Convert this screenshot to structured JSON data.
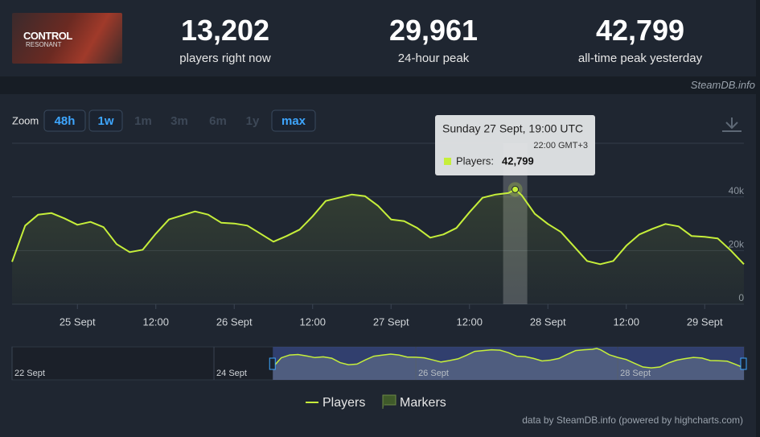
{
  "header": {
    "game_art": {
      "title": "CONTROL",
      "subtitle": "RESONANT"
    },
    "stats": [
      {
        "value": "13,202",
        "label": "players right now"
      },
      {
        "value": "29,961",
        "label": "24-hour peak"
      },
      {
        "value": "42,799",
        "label": "all-time peak yesterday"
      }
    ],
    "site": "SteamDB.info"
  },
  "zoom": {
    "label": "Zoom",
    "buttons": [
      "48h",
      "1w",
      "1m",
      "3m",
      "6m",
      "1y",
      "max"
    ]
  },
  "chart_data": {
    "type": "line",
    "x": [
      "24 Sept 14:00",
      "24 Sept 16:00",
      "24 Sept 18:00",
      "24 Sept 20:00",
      "24 Sept 22:00",
      "25 Sept 00:00",
      "25 Sept 02:00",
      "25 Sept 04:00",
      "25 Sept 06:00",
      "25 Sept 08:00",
      "25 Sept 10:00",
      "25 Sept 12:00",
      "25 Sept 14:00",
      "25 Sept 16:00",
      "25 Sept 18:00",
      "25 Sept 20:00",
      "25 Sept 22:00",
      "26 Sept 00:00",
      "26 Sept 02:00",
      "26 Sept 04:00",
      "26 Sept 06:00",
      "26 Sept 08:00",
      "26 Sept 10:00",
      "26 Sept 12:00",
      "26 Sept 14:00",
      "26 Sept 16:00",
      "26 Sept 18:00",
      "26 Sept 20:00",
      "26 Sept 22:00",
      "27 Sept 00:00",
      "27 Sept 02:00",
      "27 Sept 04:00",
      "27 Sept 06:00",
      "27 Sept 08:00",
      "27 Sept 10:00",
      "27 Sept 12:00",
      "27 Sept 14:00",
      "27 Sept 16:00",
      "27 Sept 18:00",
      "27 Sept 19:00",
      "27 Sept 20:00",
      "27 Sept 22:00",
      "28 Sept 00:00",
      "28 Sept 02:00",
      "28 Sept 04:00",
      "28 Sept 06:00",
      "28 Sept 08:00",
      "28 Sept 10:00",
      "28 Sept 12:00",
      "28 Sept 14:00",
      "28 Sept 16:00",
      "28 Sept 18:00",
      "28 Sept 20:00",
      "28 Sept 22:00",
      "29 Sept 00:00",
      "29 Sept 02:00",
      "29 Sept 04:00",
      "29 Sept 06:00"
    ],
    "series": [
      {
        "name": "Players",
        "color": "#c6ef3a",
        "values": [
          15800,
          29300,
          33400,
          34000,
          32000,
          29600,
          30700,
          28700,
          22400,
          19400,
          20300,
          26300,
          31600,
          33100,
          34600,
          33400,
          30400,
          30100,
          29300,
          26300,
          23300,
          25400,
          27800,
          32800,
          38500,
          39700,
          40900,
          40300,
          36700,
          31600,
          31000,
          28400,
          24800,
          26000,
          28400,
          34300,
          39700,
          40900,
          41500,
          42799,
          40600,
          33700,
          29900,
          26900,
          21500,
          16100,
          14900,
          16100,
          21800,
          26000,
          28100,
          29900,
          29000,
          25400,
          25100,
          24500,
          20000,
          14900
        ]
      }
    ],
    "xlim": [
      "24 Sept 14:00",
      "29 Sept 06:00"
    ],
    "xticks": [
      {
        "value": "25 Sept 00:00",
        "label": "25 Sept"
      },
      {
        "value": "25 Sept 12:00",
        "label": "12:00"
      },
      {
        "value": "26 Sept 00:00",
        "label": "26 Sept"
      },
      {
        "value": "26 Sept 12:00",
        "label": "12:00"
      },
      {
        "value": "27 Sept 00:00",
        "label": "27 Sept"
      },
      {
        "value": "27 Sept 12:00",
        "label": "12:00"
      },
      {
        "value": "28 Sept 00:00",
        "label": "28 Sept"
      },
      {
        "value": "28 Sept 12:00",
        "label": "12:00"
      },
      {
        "value": "29 Sept 00:00",
        "label": "29 Sept"
      }
    ],
    "ylim": [
      0,
      60000
    ],
    "yticks": [
      0,
      {
        "value": 20000,
        "label": "20k"
      },
      {
        "value": 40000,
        "label": "40k"
      }
    ],
    "grid": true,
    "tooltip": {
      "title": "Sunday 27 Sept, 19:00 UTC",
      "subtitle": "22:00 GMT+3",
      "label": "Players:",
      "value_label": "42,799"
    },
    "navigator": {
      "xlim": [
        "22 Sept 00:00",
        "29 Sept 06:00"
      ],
      "xticks": [
        {
          "value": "22 Sept 00:00",
          "label": "22 Sept"
        },
        {
          "value": "24 Sept 00:00",
          "label": "24 Sept"
        },
        {
          "value": "26 Sept 00:00",
          "label": "26 Sept"
        },
        {
          "value": "28 Sept 00:00",
          "label": "28 Sept"
        }
      ]
    },
    "legend": [
      "Players",
      "Markers"
    ],
    "credit": "data by SteamDB.info (powered by highcharts.com)"
  }
}
